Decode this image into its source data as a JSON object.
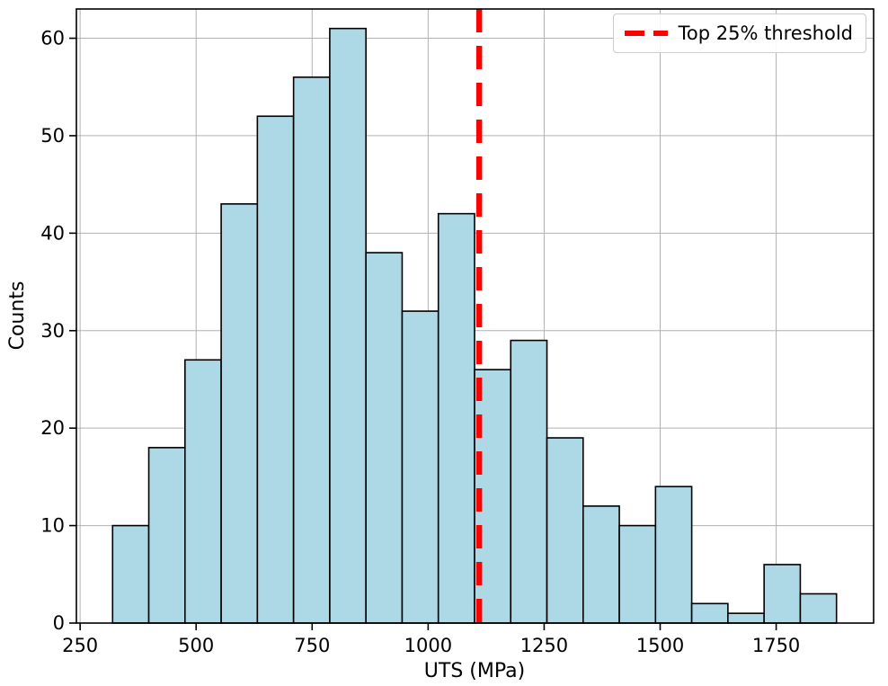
{
  "chart_data": {
    "type": "bar",
    "subtype": "histogram",
    "title": "",
    "xlabel": "UTS (MPa)",
    "ylabel": "Counts",
    "bin_start": 320,
    "bin_width": 78,
    "counts": [
      10,
      18,
      27,
      43,
      52,
      56,
      61,
      38,
      32,
      42,
      26,
      29,
      19,
      12,
      10,
      14,
      2,
      1,
      6,
      3
    ],
    "xlim": [
      242,
      1960
    ],
    "ylim": [
      0,
      63
    ],
    "x_ticks": [
      250,
      500,
      750,
      1000,
      1250,
      1500,
      1750
    ],
    "y_ticks": [
      0,
      10,
      20,
      30,
      40,
      50,
      60
    ],
    "threshold_x": 1110,
    "legend": [
      {
        "label": "Top 25% threshold",
        "style": "red-dashed-line"
      }
    ],
    "legend_position": "upper right",
    "grid": true,
    "bar_color": "#ADD8E6",
    "bar_edge_color": "#000000",
    "threshold_color": "#FF0000"
  }
}
